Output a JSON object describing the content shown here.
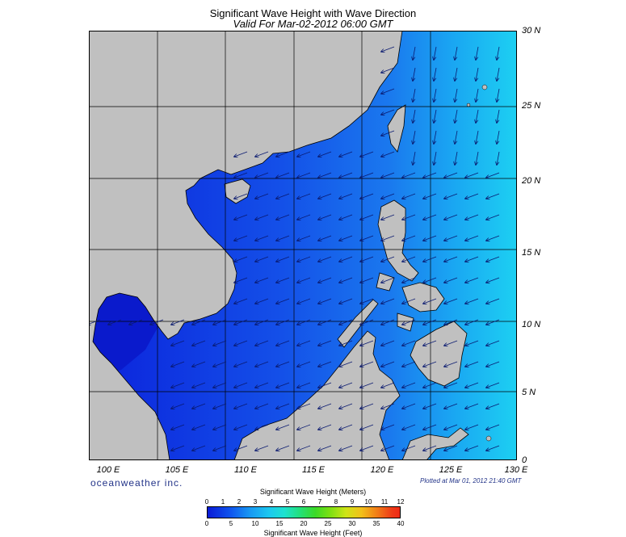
{
  "title": "Significant Wave Height with Wave Direction",
  "subtitle": "Valid For Mar-02-2012 06:00 GMT",
  "lat_labels": [
    "30 N",
    "25 N",
    "20 N",
    "15 N",
    "10 N",
    "5 N",
    "0"
  ],
  "lon_labels": [
    "100 E",
    "105 E",
    "110 E",
    "115 E",
    "120 E",
    "125 E",
    "130 E"
  ],
  "brand": "oceanweather inc.",
  "plotted": "Plotted at Mar 01, 2012 21:40 GMT",
  "colorbar": {
    "title": "Significant Wave Height (Meters)",
    "subtitle": "Significant Wave Height (Feet)",
    "meters_ticks": [
      "0",
      "1",
      "2",
      "3",
      "4",
      "5",
      "6",
      "7",
      "8",
      "9",
      "10",
      "11",
      "12"
    ],
    "feet_ticks": [
      "0",
      "5",
      "10",
      "15",
      "20",
      "25",
      "30",
      "35",
      "40"
    ]
  },
  "colors": {
    "land": "#c0c0c0",
    "sea_low": "#0a1bd6",
    "sea_mid": "#1a7ae8",
    "sea_high": "#1ecff0",
    "grid": "#000000"
  }
}
